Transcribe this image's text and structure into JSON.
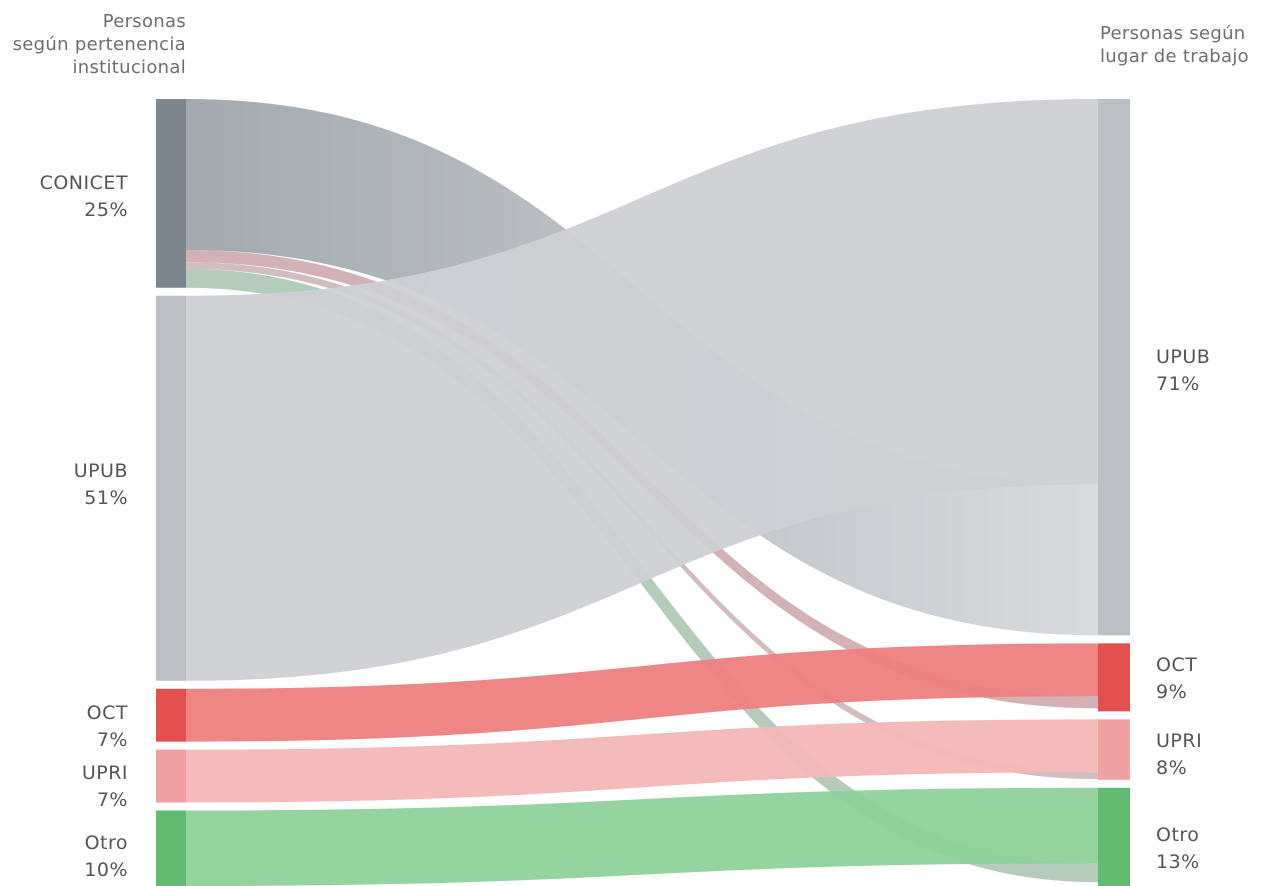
{
  "headers": {
    "left": [
      "Personas",
      "según pertenencia",
      "institucional"
    ],
    "right": [
      "Personas según",
      "lugar de trabajo"
    ]
  },
  "left_nodes": [
    {
      "id": "conicet",
      "name": "CONICET",
      "pct": "25%",
      "value": 25,
      "color": "#7d858e"
    },
    {
      "id": "upub",
      "name": "UPUB",
      "pct": "51%",
      "value": 51,
      "color": "#bcc0c5"
    },
    {
      "id": "oct",
      "name": "OCT",
      "pct": "7%",
      "value": 7,
      "color": "#e35050"
    },
    {
      "id": "upri",
      "name": "UPRI",
      "pct": "7%",
      "value": 7,
      "color": "#f0a1a1"
    },
    {
      "id": "otro",
      "name": "Otro",
      "pct": "10%",
      "value": 10,
      "color": "#62bb72"
    }
  ],
  "right_nodes": [
    {
      "id": "upub",
      "name": "UPUB",
      "pct": "71%",
      "value": 71,
      "color": "#bcc0c5"
    },
    {
      "id": "oct",
      "name": "OCT",
      "pct": "9%",
      "value": 9,
      "color": "#e35050"
    },
    {
      "id": "upri",
      "name": "UPRI",
      "pct": "8%",
      "value": 8,
      "color": "#f0a1a1"
    },
    {
      "id": "otro",
      "name": "Otro",
      "pct": "13%",
      "value": 13,
      "color": "#62bb72"
    }
  ],
  "flows": [
    {
      "source": "conicet",
      "target": "upub",
      "value": 20,
      "color": "#a4a9b0"
    },
    {
      "source": "conicet",
      "target": "oct",
      "value": 1.6,
      "color": "#c99da4"
    },
    {
      "source": "conicet",
      "target": "upri",
      "value": 0.9,
      "color": "#c7aeb0"
    },
    {
      "source": "conicet",
      "target": "otro",
      "value": 2.5,
      "color": "#a2bfaa"
    },
    {
      "source": "upub",
      "target": "upub",
      "value": 51,
      "color": "#cdd0d4"
    },
    {
      "source": "oct",
      "target": "oct",
      "value": 7,
      "color": "#ee8080"
    },
    {
      "source": "upri",
      "target": "upri",
      "value": 7,
      "color": "#f4b7b7"
    },
    {
      "source": "otro",
      "target": "otro",
      "value": 10,
      "color": "#8fd19a"
    }
  ]
}
